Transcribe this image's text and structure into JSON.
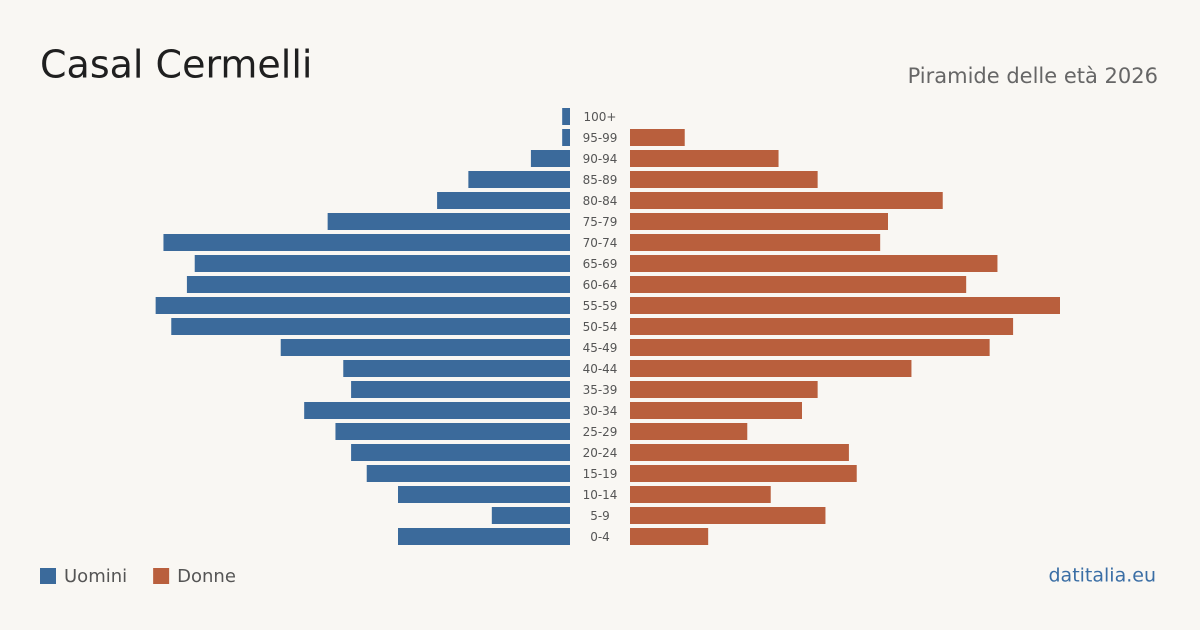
{
  "chart_data": {
    "type": "pyramid",
    "title": "Casal Cermelli",
    "subtitle": "Piramide delle età 2026",
    "source": "datitalia.eu",
    "categories": [
      "100+",
      "95-99",
      "90-94",
      "85-89",
      "80-84",
      "75-79",
      "70-74",
      "65-69",
      "60-64",
      "55-59",
      "50-54",
      "45-49",
      "40-44",
      "35-39",
      "30-34",
      "25-29",
      "20-24",
      "15-19",
      "10-14",
      "5-9",
      "0-4"
    ],
    "series": [
      {
        "name": "Uomini",
        "color": "#3b6a9b",
        "values": [
          1,
          1,
          5,
          13,
          17,
          31,
          52,
          48,
          49,
          53,
          51,
          37,
          29,
          28,
          34,
          30,
          28,
          26,
          22,
          10,
          22
        ]
      },
      {
        "name": "Donne",
        "color": "#b95f3d",
        "values": [
          0,
          7,
          19,
          24,
          40,
          33,
          32,
          47,
          43,
          55,
          49,
          46,
          36,
          24,
          22,
          15,
          28,
          29,
          18,
          25,
          10
        ]
      }
    ]
  }
}
